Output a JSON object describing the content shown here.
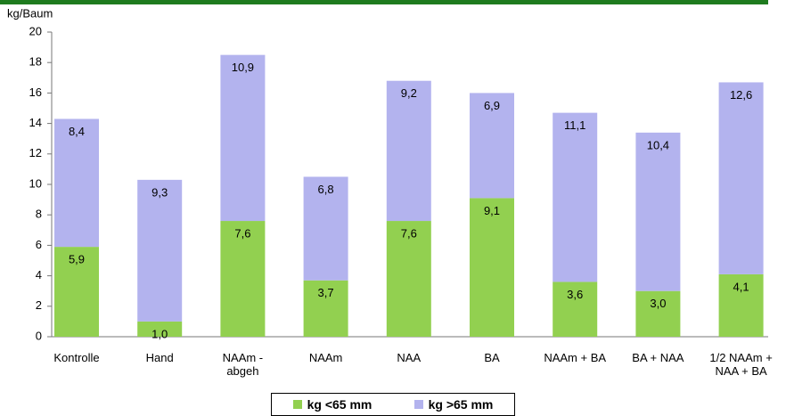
{
  "chart_data": {
    "type": "stacked-bar",
    "ylabel": "kg/Baum",
    "categories": [
      "Kontrolle",
      "Hand",
      "NAAm -\nabgeh",
      "NAAm",
      "NAA",
      "BA",
      "NAAm + BA",
      "BA + NAA",
      "1/2 NAAm +\nNAA + BA"
    ],
    "series": [
      {
        "name": "kg <65 mm",
        "color": "#92d050",
        "values": [
          5.9,
          1.0,
          7.6,
          3.7,
          7.6,
          9.1,
          3.6,
          3.0,
          4.1
        ],
        "value_labels": [
          "5,9",
          "1,0",
          "7,6",
          "3,7",
          "7,6",
          "9,1",
          "3,6",
          "3,0",
          "4,1"
        ]
      },
      {
        "name": "kg >65 mm",
        "color": "#b3b3ee",
        "values": [
          8.4,
          9.3,
          10.9,
          6.8,
          9.2,
          6.9,
          11.1,
          10.4,
          12.6
        ],
        "value_labels": [
          "8,4",
          "9,3",
          "10,9",
          "6,8",
          "9,2",
          "6,9",
          "11,1",
          "10,4",
          "12,6"
        ]
      }
    ],
    "ylim": [
      0,
      20
    ],
    "yticks": [
      0,
      2,
      4,
      6,
      8,
      10,
      12,
      14,
      16,
      18,
      20
    ],
    "grid": false
  }
}
